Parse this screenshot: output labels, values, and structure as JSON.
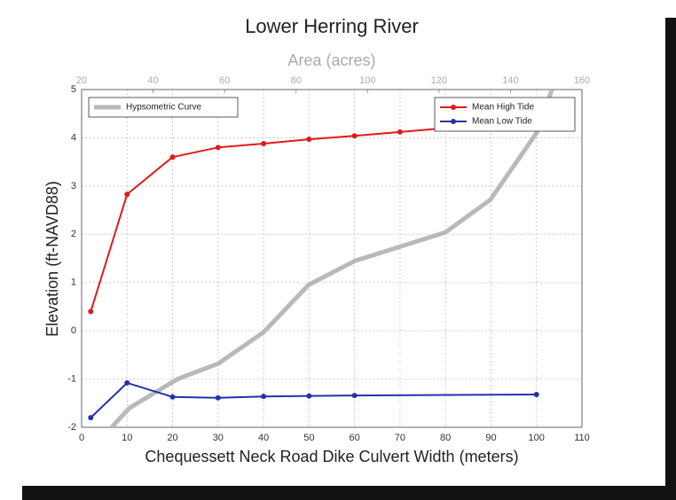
{
  "chart_data": {
    "type": "line",
    "title": "Lower Herring River",
    "xlabel": "Chequessett Neck Road Dike Culvert Width (meters)",
    "ylabel": "Elevation (ft-NAVD88)",
    "x2label": "Area (acres)",
    "xlim": [
      0,
      110
    ],
    "xticks": [
      0,
      10,
      20,
      30,
      40,
      50,
      60,
      70,
      80,
      90,
      100,
      110
    ],
    "x2lim": [
      20,
      160
    ],
    "x2ticks": [
      20,
      40,
      60,
      80,
      100,
      120,
      140,
      160
    ],
    "ylim": [
      -2,
      5
    ],
    "yticks": [
      -2,
      -1,
      0,
      1,
      2,
      3,
      4,
      5
    ],
    "grid": true,
    "series": [
      {
        "name": "Hypsometric Curve",
        "color": "#b9b9b9",
        "axis": "x2",
        "legend_loc": "upper left",
        "markers": false,
        "x": [
          28.4,
          33.4,
          46.8,
          58.2,
          70.9,
          83.5,
          96.5,
          121.8,
          134.4,
          147.3,
          151.6
        ],
        "values": [
          -2,
          -1.6,
          -1.0,
          -0.68,
          -0.03,
          0.95,
          1.45,
          2.04,
          2.72,
          4.1,
          5.0
        ]
      },
      {
        "name": "Mean High Tide",
        "color": "#e01b1b",
        "legend_loc": "upper right",
        "markers": true,
        "x": [
          2,
          10,
          20,
          30,
          40,
          50,
          60,
          70,
          80,
          90,
          100
        ],
        "values": [
          0.4,
          2.83,
          3.6,
          3.8,
          3.88,
          3.97,
          4.04,
          4.12,
          4.2,
          4.25,
          4.3
        ]
      },
      {
        "name": "Mean Low Tide",
        "color": "#2233aa",
        "legend_loc": "upper right",
        "markers": true,
        "x": [
          2,
          10,
          20,
          30,
          40,
          50,
          60,
          100
        ],
        "values": [
          -1.8,
          -1.08,
          -1.37,
          -1.39,
          -1.36,
          -1.35,
          -1.34,
          -1.32
        ]
      }
    ]
  }
}
